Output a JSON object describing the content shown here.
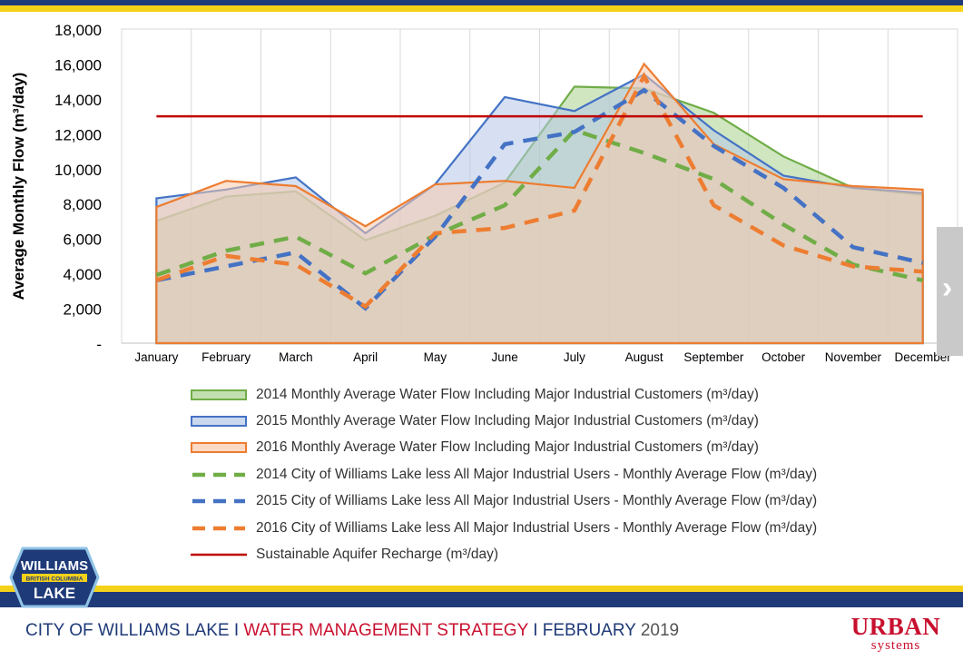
{
  "chart_data": {
    "type": "area",
    "title": "",
    "xlabel": "",
    "ylabel": "Average Monthly Flow (m³/day)",
    "ylim": [
      0,
      18000
    ],
    "y_ticks": [
      0,
      2000,
      4000,
      6000,
      8000,
      10000,
      12000,
      14000,
      16000,
      18000
    ],
    "y_tick_labels": [
      "-",
      "2,000",
      "4,000",
      "6,000",
      "8,000",
      "10,000",
      "12,000",
      "14,000",
      "16,000",
      "18,000"
    ],
    "grid": "vertical",
    "legend_position": "bottom",
    "categories": [
      "January",
      "February",
      "March",
      "April",
      "May",
      "June",
      "July",
      "August",
      "September",
      "October",
      "November",
      "December"
    ],
    "series": [
      {
        "name": "2014 Monthly Average Water Flow Including Major Industrial Customers (m³/day)",
        "style": "area",
        "color": "#70ad47",
        "fill": "#a9d18e",
        "values": [
          7000,
          8400,
          8700,
          5900,
          7300,
          9200,
          14700,
          14600,
          13200,
          10700,
          8900,
          8500
        ]
      },
      {
        "name": "2015 Monthly Average Water Flow Including Major Industrial Customers (m³/day)",
        "style": "area",
        "color": "#4472c4",
        "fill": "#b4c7e7",
        "values": [
          8300,
          8800,
          9500,
          6300,
          9100,
          14100,
          13300,
          15400,
          12200,
          9600,
          8900,
          8600
        ]
      },
      {
        "name": "2016 Monthly Average Water Flow Including Major Industrial Customers (m³/day)",
        "style": "area",
        "color": "#ed7d31",
        "fill": "#f8cbad",
        "values": [
          7800,
          9300,
          9000,
          6700,
          9100,
          9300,
          8900,
          16000,
          11400,
          9400,
          9000,
          8800
        ]
      },
      {
        "name": "2014 City of Williams Lake less All Major Industrial Users - Monthly Average Flow (m³/day)",
        "style": "dashed",
        "color": "#70ad47",
        "values": [
          3900,
          5300,
          6100,
          4000,
          6200,
          7900,
          12200,
          10900,
          9400,
          6800,
          4500,
          3600
        ]
      },
      {
        "name": "2015 City of Williams Lake less All Major Industrial Users - Monthly Average Flow (m³/day)",
        "style": "dashed",
        "color": "#4472c4",
        "values": [
          3600,
          4400,
          5200,
          2000,
          6100,
          11400,
          12100,
          14500,
          11300,
          8900,
          5500,
          4600
        ]
      },
      {
        "name": "2016 City of Williams Lake less All Major Industrial Users - Monthly Average Flow (m³/day)",
        "style": "dashed",
        "color": "#ed7d31",
        "values": [
          3600,
          5000,
          4500,
          2100,
          6300,
          6600,
          7600,
          15300,
          7900,
          5600,
          4400,
          4100
        ]
      },
      {
        "name": "Sustainable Aquifer Recharge  (m³/day)",
        "style": "line",
        "color": "#c00000",
        "values": [
          13000,
          13000,
          13000,
          13000,
          13000,
          13000,
          13000,
          13000,
          13000,
          13000,
          13000,
          13000
        ]
      }
    ]
  },
  "footer": {
    "city": "CITY OF WILLIAMS LAKE",
    "sep1": " I ",
    "strategy": "WATER MANAGEMENT STRATEGY",
    "sep2": " I ",
    "month": "FEBRUARY",
    "year": " 2019"
  },
  "logo": {
    "line1": "WILLIAMS",
    "line2": "BRITISH COLUMBIA",
    "line3": "LAKE"
  },
  "brand": {
    "name": "URBAN",
    "sub": "systems"
  },
  "nav": {
    "next_icon": "chevron-right-icon",
    "glyph": "›"
  }
}
